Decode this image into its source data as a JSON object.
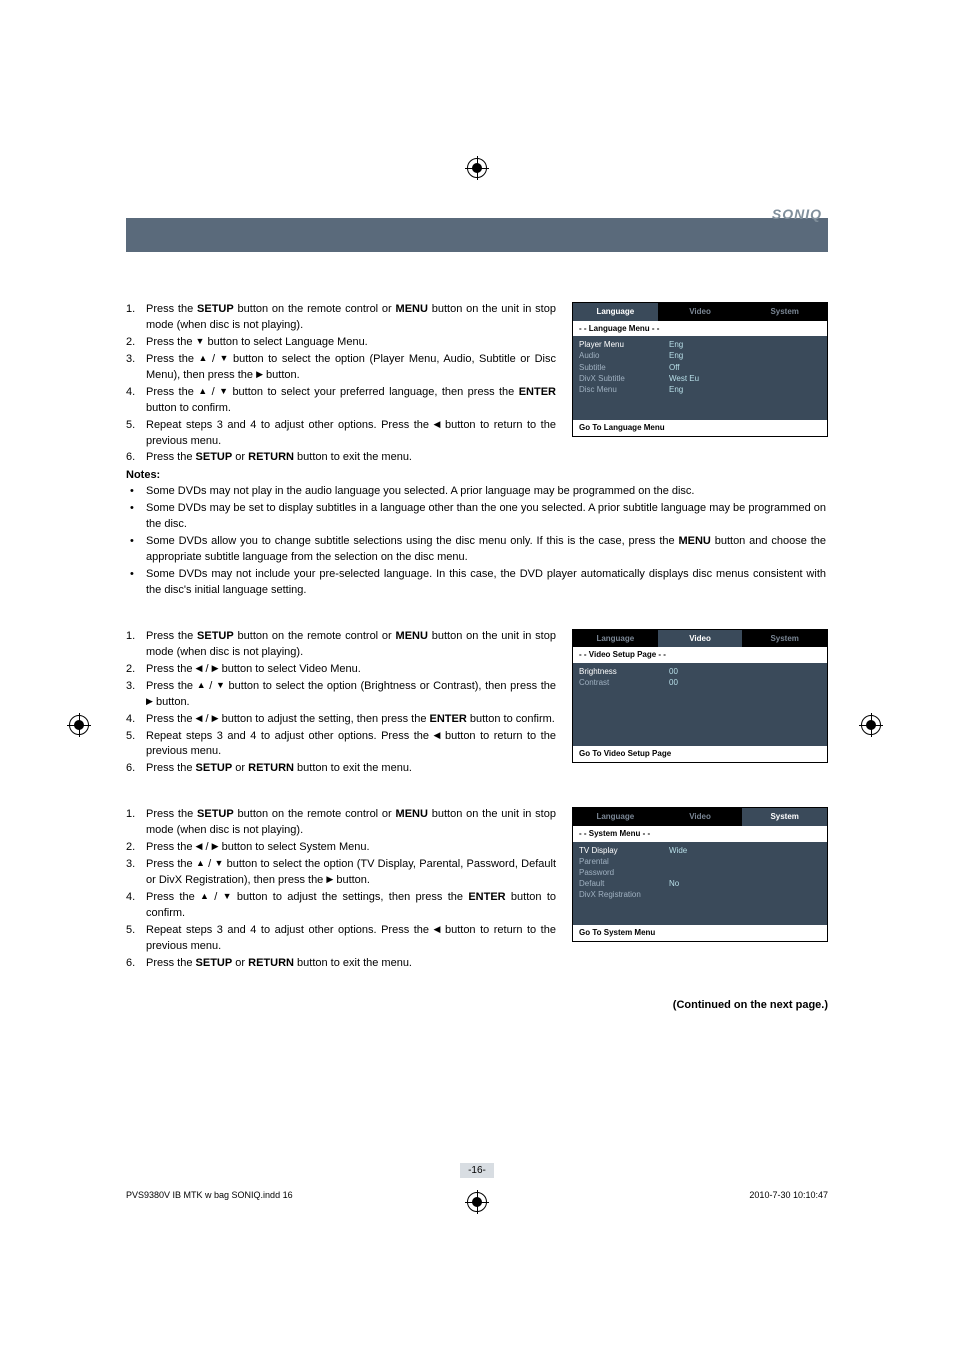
{
  "brand": "SONIQ",
  "arrows": {
    "up": "▲",
    "down": "▼",
    "left": "◀",
    "right": "▶"
  },
  "section1": {
    "steps": [
      "Press the **SETUP** button on the remote control or **MENU** button on the unit in stop mode (when disc is not playing).",
      "Press the ▼ button to select Language Menu.",
      "Press the ▲ / ▼ button to select the option (Player Menu, Audio, Subtitle or Disc Menu), then press the ▶ button.",
      "Press the ▲ / ▼ button to select your preferred language, then press the **ENTER** button to confirm.",
      "Repeat steps 3 and 4 to adjust other options. Press the ◀ button to return to the previous menu.",
      "Press the **SETUP** or **RETURN** button to exit the menu."
    ],
    "notes_heading": "Notes:",
    "notes": [
      "Some DVDs may not play in the audio language you selected. A prior language may be programmed on the disc.",
      "Some DVDs may be set to display subtitles in a language other than the one you selected. A prior subtitle language may be programmed on the disc.",
      "Some DVDs allow you to change subtitle selections using the disc menu only. If this is the case,  press the **MENU** button and choose the appropriate subtitle language from the selection on the disc menu.",
      "Some DVDs may not include your pre-selected language. In this case, the DVD player automatically displays disc menus consistent with the disc's initial language setting."
    ],
    "menu": {
      "tabs": [
        "Language",
        "Video",
        "System"
      ],
      "selected_tab": 0,
      "subtitle": "- -  Language Menu  - -",
      "rows": [
        {
          "k": "Player Menu",
          "v": "Eng",
          "sel": true
        },
        {
          "k": "Audio",
          "v": "Eng"
        },
        {
          "k": "Subtitle",
          "v": "Off"
        },
        {
          "k": "DivX Subtitle",
          "v": "West Eu"
        },
        {
          "k": "Disc Menu",
          "v": "Eng"
        }
      ],
      "footer": "Go To Language Menu"
    }
  },
  "section2": {
    "steps": [
      "Press the **SETUP** button on the remote control or **MENU** button on the unit in stop mode (when disc is not playing).",
      "Press the ◀ / ▶ button to select Video Menu.",
      "Press the ▲ / ▼ button to select the option (Brightness or Contrast), then press the ▶ button.",
      "Press the ◀ / ▶ button to adjust the setting, then press the **ENTER** button to confirm.",
      "Repeat steps 3 and 4 to adjust other options. Press the ◀ button to return to the previous menu.",
      "Press the **SETUP** or **RETURN** button to exit the menu."
    ],
    "menu": {
      "tabs": [
        "Language",
        "Video",
        "System"
      ],
      "selected_tab": 1,
      "subtitle": "- - Video Setup Page - -",
      "rows": [
        {
          "k": "Brightness",
          "v": "00",
          "sel": true
        },
        {
          "k": "Contrast",
          "v": "00"
        }
      ],
      "footer": "Go To Video Setup Page"
    }
  },
  "section3": {
    "steps": [
      "Press the **SETUP** button on the remote control or **MENU** button on the unit in stop mode (when disc is not playing).",
      "Press the ◀ / ▶ button to select System Menu.",
      "Press the ▲ / ▼ button to select the option (TV Display, Parental, Password, Default or DivX Registration), then press the ▶ button.",
      "Press the ▲ / ▼ button to adjust the settings, then press the **ENTER** button to confirm.",
      "Repeat steps 3 and 4 to adjust other options. Press the ◀ button to return to the previous menu.",
      "Press the **SETUP** or **RETURN** button to exit the menu."
    ],
    "menu": {
      "tabs": [
        "Language",
        "Video",
        "System"
      ],
      "selected_tab": 2,
      "subtitle": "- -  System Menu  - -",
      "rows": [
        {
          "k": "TV Display",
          "v": "Wide",
          "sel": true
        },
        {
          "k": "Parental",
          "v": ""
        },
        {
          "k": "Password",
          "v": ""
        },
        {
          "k": "Default",
          "v": "No"
        },
        {
          "k": "DivX Registration",
          "v": ""
        }
      ],
      "footer": "Go To System Menu"
    }
  },
  "continued": "(Continued on the next page.)",
  "page_number": "-16-",
  "print_footer_left": "PVS9380V IB MTK w bag SONIQ.indd   16",
  "print_footer_right": "2010-7-30   10:10:47"
}
